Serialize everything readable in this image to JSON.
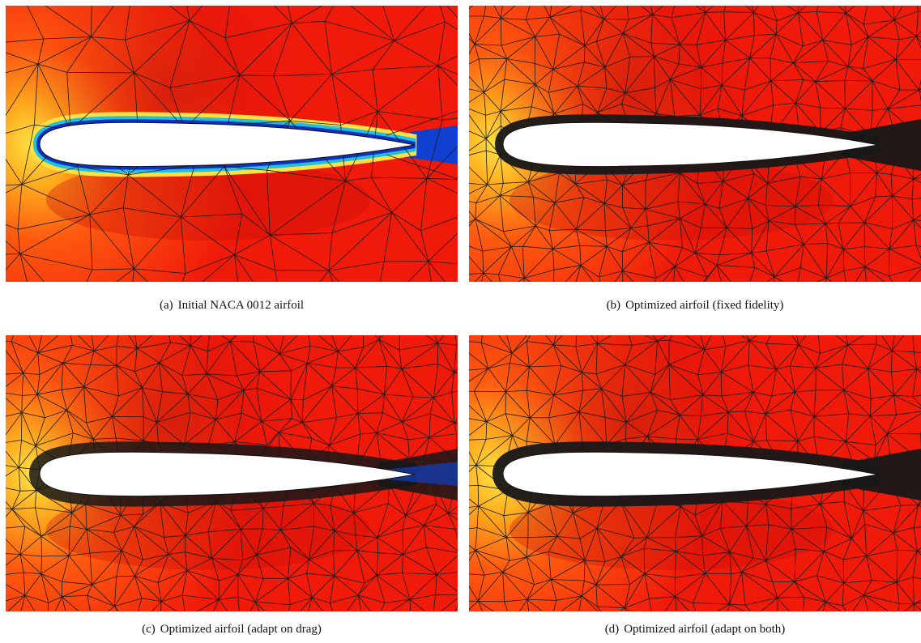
{
  "figure": {
    "panels": [
      {
        "label": "(a)",
        "caption": "Initial NACA 0012 airfoil"
      },
      {
        "label": "(b)",
        "caption": "Optimized airfoil (fixed fidelity)"
      },
      {
        "label": "(c)",
        "caption": "Optimized airfoil (adapt on drag)"
      },
      {
        "label": "(d)",
        "caption": "Optimized airfoil (adapt on both)"
      }
    ]
  }
}
